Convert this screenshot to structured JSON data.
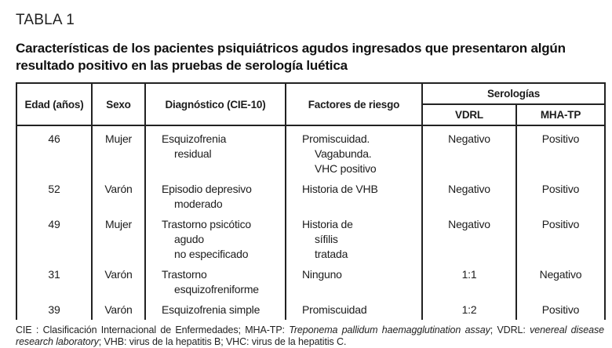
{
  "page": {
    "label": "TABLA 1",
    "title": "Características de los pacientes psiquiátricos agudos ingresados que presentaron algún resultado positivo en las pruebas de serología luética"
  },
  "table": {
    "headers": {
      "edad": "Edad (años)",
      "sexo": "Sexo",
      "diagnostico": "Diagnóstico (CIE-10)",
      "factores": "Factores de riesgo",
      "serologias": "Serologías",
      "vdrl": "VDRL",
      "mhatp": "MHA-TP"
    },
    "rows": [
      {
        "edad": "46",
        "sexo": "Mujer",
        "diagnostico": [
          "Esquizofrenia",
          "residual"
        ],
        "factores": [
          "Promiscuidad.",
          "Vagabunda.",
          "VHC positivo"
        ],
        "vdrl": "Negativo",
        "mhatp": "Positivo"
      },
      {
        "edad": "52",
        "sexo": "Varón",
        "diagnostico": [
          "Episodio depresivo",
          "moderado"
        ],
        "factores": [
          "Historia de VHB"
        ],
        "vdrl": "Negativo",
        "mhatp": "Positivo"
      },
      {
        "edad": "49",
        "sexo": "Mujer",
        "diagnostico": [
          "Trastorno psicótico",
          "agudo",
          "no especificado"
        ],
        "factores": [
          "Historia de",
          "sífilis",
          "tratada"
        ],
        "vdrl": "Negativo",
        "mhatp": "Positivo"
      },
      {
        "edad": "31",
        "sexo": "Varón",
        "diagnostico": [
          "Trastorno",
          "esquizofreniforme"
        ],
        "factores": [
          "Ninguno"
        ],
        "vdrl": "1:1",
        "mhatp": "Negativo"
      },
      {
        "edad": "39",
        "sexo": "Varón",
        "diagnostico": [
          "Esquizofrenia simple"
        ],
        "factores": [
          "Promiscuidad"
        ],
        "vdrl": "1:2",
        "mhatp": "Positivo"
      }
    ]
  },
  "footnote": {
    "segments": [
      {
        "text": "CIE : Clasificación Internacional de Enfermedades; MHA-TP: ",
        "italic": false
      },
      {
        "text": "Treponema pallidum haemagglutination assay",
        "italic": true
      },
      {
        "text": "; VDRL: ",
        "italic": false
      },
      {
        "text": "venereal disease research laboratory",
        "italic": true
      },
      {
        "text": "; VHB: virus de la hepatitis B; VHC: virus de la hepatitis C.",
        "italic": false
      }
    ]
  }
}
